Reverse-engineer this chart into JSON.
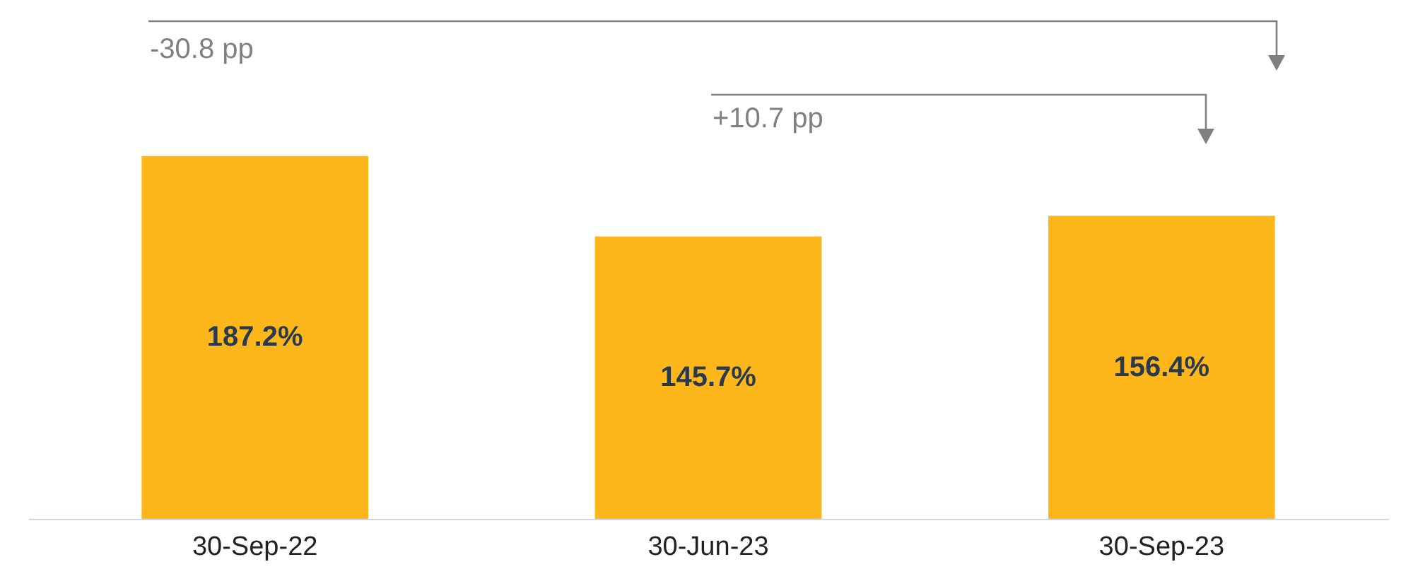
{
  "chart_data": {
    "type": "bar",
    "categories": [
      "30-Sep-22",
      "30-Jun-23",
      "30-Sep-23"
    ],
    "values": [
      187.2,
      145.7,
      156.4
    ],
    "value_labels": [
      "187.2%",
      "145.7%",
      "156.4%"
    ],
    "color": "#fdb71a",
    "annotations": [
      "-30.8 pp",
      "+10.7 pp"
    ],
    "grid": false
  }
}
